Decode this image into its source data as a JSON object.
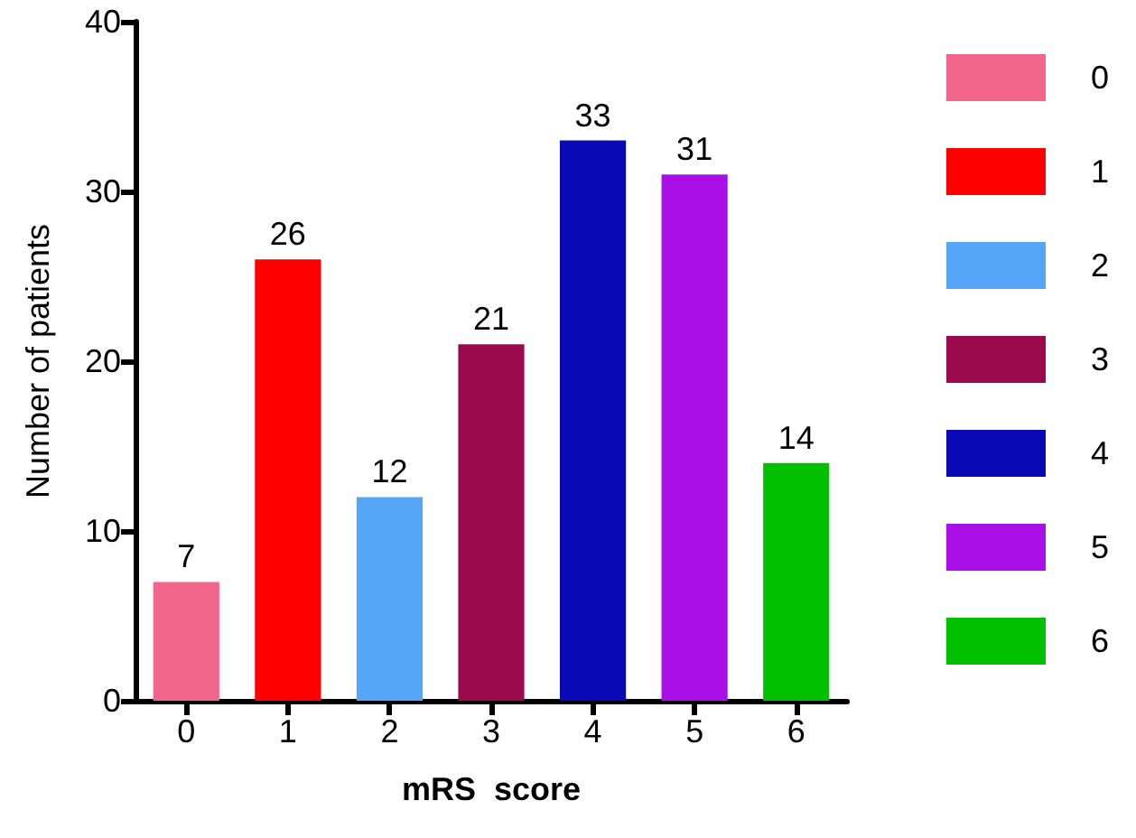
{
  "chart_data": {
    "type": "bar",
    "xlabel": "mRS  score",
    "ylabel": "Number of patients",
    "categories": [
      "0",
      "1",
      "2",
      "3",
      "4",
      "5",
      "6"
    ],
    "stacked": true,
    "series": [
      {
        "name": "0",
        "color": "#f2668b",
        "values": [
          7,
          null,
          null,
          null,
          null,
          null,
          null
        ]
      },
      {
        "name": "1",
        "color": "#ff0000",
        "values": [
          null,
          26,
          null,
          null,
          null,
          null,
          null
        ]
      },
      {
        "name": "2",
        "color": "#55a6f6",
        "values": [
          null,
          null,
          12,
          null,
          null,
          null,
          null
        ]
      },
      {
        "name": "3",
        "color": "#9b0a4c",
        "values": [
          null,
          null,
          null,
          21,
          null,
          null,
          null
        ]
      },
      {
        "name": "4",
        "color": "#0a0ab4",
        "values": [
          null,
          null,
          null,
          null,
          33,
          null,
          null
        ]
      },
      {
        "name": "5",
        "color": "#a90fe6",
        "values": [
          null,
          null,
          null,
          null,
          null,
          31,
          null
        ]
      },
      {
        "name": "6",
        "color": "#00c000",
        "values": [
          null,
          null,
          null,
          null,
          null,
          null,
          14
        ]
      }
    ],
    "ylim": [
      0,
      40
    ],
    "yticks": [
      0,
      10,
      20,
      30,
      40
    ],
    "grid": false,
    "legend": "right",
    "data_labels": true
  }
}
